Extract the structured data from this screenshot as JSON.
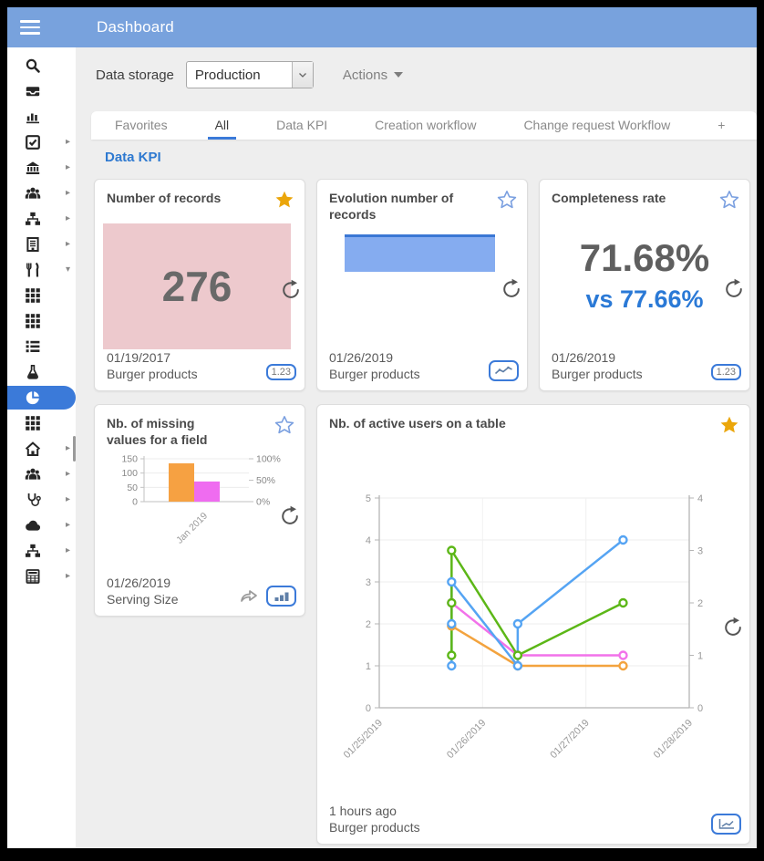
{
  "colors": {
    "topbar": "#78a2dd",
    "accent": "#3b7ad9",
    "section_title": "#2e79d0",
    "gold_star": "#eba60b",
    "pink_block": "#edc9cd",
    "bar_fill": "#85acf0",
    "bar_top": "#3a77d4",
    "vs_blue": "#2a79d6",
    "line_blue": "#55a4f3",
    "line_green": "#5cb717",
    "line_orange": "#f3a33e",
    "line_magenta": "#f272ea",
    "mini_bar_orange": "#f6a142",
    "mini_bar_magenta": "#ef6cf0"
  },
  "topbar": {
    "title": "Dashboard"
  },
  "toolbar": {
    "data_storage_label": "Data storage",
    "storage_value": "Production",
    "actions_label": "Actions"
  },
  "tabs": {
    "items": [
      {
        "label": "Favorites",
        "active": false
      },
      {
        "label": "All",
        "active": true
      },
      {
        "label": "Data KPI",
        "active": false
      },
      {
        "label": "Creation workflow",
        "active": false
      },
      {
        "label": "Change request Workflow",
        "active": false
      },
      {
        "label": "+",
        "active": false
      }
    ]
  },
  "section": {
    "title": "Data KPI"
  },
  "cards": {
    "records": {
      "title": "Number of records",
      "favorited": true,
      "value": "276",
      "date": "01/19/2017",
      "source": "Burger products",
      "badge": "1.23"
    },
    "evolution": {
      "title": "Evolution number of records",
      "favorited": false,
      "date": "01/26/2019",
      "source": "Burger products"
    },
    "completeness": {
      "title": "Completeness rate",
      "favorited": false,
      "value": "71.68%",
      "vs_value": "vs 77.66%",
      "date": "01/26/2019",
      "source": "Burger products",
      "badge": "1.23"
    },
    "missing_values": {
      "title": "Nb. of missing values for a field",
      "favorited": false,
      "date": "01/26/2019",
      "source": "Serving Size"
    },
    "active_users": {
      "title": "Nb. of active users on a table",
      "favorited": true,
      "date": "1 hours ago",
      "source": "Burger products"
    }
  },
  "sidebar": {
    "items": [
      {
        "icon": "search"
      },
      {
        "icon": "inbox-tray"
      },
      {
        "icon": "bar-chart"
      },
      {
        "icon": "check-square",
        "arrow": "right"
      },
      {
        "icon": "bank",
        "arrow": "right"
      },
      {
        "icon": "users",
        "arrow": "right"
      },
      {
        "icon": "sitemap",
        "arrow": "right"
      },
      {
        "icon": "building",
        "arrow": "right"
      },
      {
        "icon": "restaurant",
        "arrow": "down"
      },
      {
        "icon": "grid"
      },
      {
        "icon": "grid"
      },
      {
        "icon": "list"
      },
      {
        "icon": "flask"
      },
      {
        "icon": "pie-chart",
        "active": true
      },
      {
        "icon": "grid"
      },
      {
        "icon": "home",
        "arrow": "right"
      },
      {
        "icon": "users",
        "arrow": "right"
      },
      {
        "icon": "stethoscope",
        "arrow": "right"
      },
      {
        "icon": "cloud",
        "arrow": "right"
      },
      {
        "icon": "sitemap",
        "arrow": "right"
      },
      {
        "icon": "calculator",
        "arrow": "right"
      }
    ]
  },
  "chart_data": [
    {
      "id": "missing-values-by-month",
      "type": "bar",
      "card": "missing_values",
      "categories": [
        "Jan 2019"
      ],
      "series": [
        {
          "name": "missing-count",
          "axis": "left",
          "color": "#f6a142",
          "values": [
            134
          ]
        },
        {
          "name": "missing-percent",
          "axis": "right",
          "color": "#ef6cf0",
          "values": [
            47
          ]
        }
      ],
      "left_axis": {
        "range": [
          0,
          150
        ],
        "ticks": [
          0,
          50,
          100,
          150
        ]
      },
      "right_axis": {
        "range": [
          0,
          100
        ],
        "ticks": [
          0,
          50,
          100
        ],
        "suffix": "%"
      },
      "grid": true,
      "legend": false
    },
    {
      "id": "active-users-over-time",
      "type": "line",
      "card": "active_users",
      "x_tick_labels": [
        "01/25/2019",
        "01/26/2019",
        "01/27/2019",
        "01/28/2019"
      ],
      "x_range": [
        0,
        3
      ],
      "left_axis": {
        "range": [
          0,
          5
        ],
        "ticks": [
          0,
          1,
          2,
          3,
          4,
          5
        ]
      },
      "right_axis": {
        "range": [
          0,
          4
        ],
        "ticks": [
          0,
          1,
          2,
          3,
          4
        ]
      },
      "series": [
        {
          "name": "series-orange",
          "axis": "left",
          "color": "#f3a33e",
          "points": [
            [
              0.7,
              1.95
            ],
            [
              1.34,
              1
            ],
            [
              2.36,
              1
            ]
          ]
        },
        {
          "name": "series-magenta",
          "axis": "right",
          "color": "#f272ea",
          "points": [
            [
              0.7,
              2
            ],
            [
              1.34,
              1
            ],
            [
              2.36,
              1
            ]
          ]
        },
        {
          "name": "series-blue",
          "axis": "left",
          "color": "#55a4f3",
          "points": [
            [
              0.7,
              1
            ],
            [
              0.7,
              2
            ],
            [
              0.7,
              3
            ],
            [
              1.34,
              1
            ],
            [
              1.34,
              2
            ],
            [
              2.36,
              4
            ]
          ]
        },
        {
          "name": "series-green",
          "axis": "right",
          "color": "#5cb717",
          "points": [
            [
              0.7,
              1
            ],
            [
              0.7,
              2
            ],
            [
              0.7,
              3
            ],
            [
              1.34,
              1
            ],
            [
              2.36,
              2
            ]
          ]
        }
      ],
      "grid": true,
      "legend": false
    }
  ]
}
